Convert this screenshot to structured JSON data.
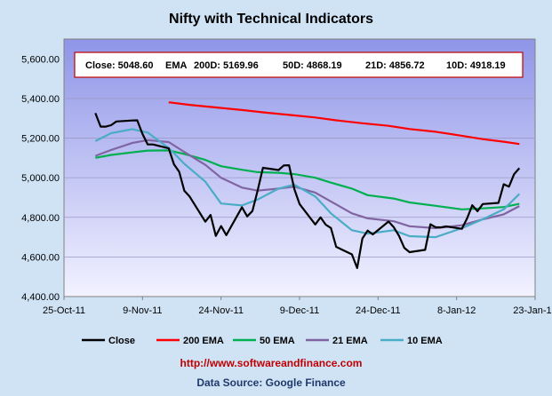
{
  "colors": {
    "background": "#cfe3f5",
    "plot_top": "#8f95e8",
    "plot_bottom": "#f2f2ff",
    "info_border": "#c00000",
    "url": "#c00000",
    "source": "#1f3a6b"
  },
  "info_box": {
    "close": "Close: 5048.60",
    "ema": "EMA",
    "d200": "200D: 5169.96",
    "d50": "50D: 4868.19",
    "d21": "21D: 4856.72",
    "d10": "10D: 4918.19"
  },
  "footer": {
    "url": "http://www.softwareandfinance.com",
    "source": "Data Source: Google Finance"
  },
  "chart_data": {
    "type": "line",
    "title": "Nifty with Technical Indicators",
    "xlabel": "",
    "ylabel": "",
    "ylim": [
      4400,
      5700
    ],
    "xlim": [
      "2011-10-25",
      "2012-01-23"
    ],
    "grid": true,
    "legend_position": "bottom",
    "y_ticks": [
      "4,400.00",
      "4,600.00",
      "4,800.00",
      "5,000.00",
      "5,200.00",
      "5,400.00",
      "5,600.00"
    ],
    "x_ticks": [
      "25-Oct-11",
      "9-Nov-11",
      "24-Nov-11",
      "9-Dec-11",
      "24-Dec-11",
      "8-Jan-12",
      "23-Jan-12"
    ],
    "series": [
      {
        "name": "Close",
        "color": "#000000",
        "points": [
          [
            "2011-10-31",
            5326
          ],
          [
            "2011-11-01",
            5258
          ],
          [
            "2011-11-02",
            5258
          ],
          [
            "2011-11-03",
            5265
          ],
          [
            "2011-11-04",
            5284
          ],
          [
            "2011-11-07",
            5289
          ],
          [
            "2011-11-08",
            5290
          ],
          [
            "2011-11-09",
            5221
          ],
          [
            "2011-11-10",
            5168
          ],
          [
            "2011-11-11",
            5168
          ],
          [
            "2011-11-14",
            5148
          ],
          [
            "2011-11-15",
            5068
          ],
          [
            "2011-11-16",
            5030
          ],
          [
            "2011-11-17",
            4934
          ],
          [
            "2011-11-18",
            4905
          ],
          [
            "2011-11-21",
            4778
          ],
          [
            "2011-11-22",
            4812
          ],
          [
            "2011-11-23",
            4706
          ],
          [
            "2011-11-24",
            4756
          ],
          [
            "2011-11-25",
            4710
          ],
          [
            "2011-11-28",
            4851
          ],
          [
            "2011-11-29",
            4805
          ],
          [
            "2011-11-30",
            4832
          ],
          [
            "2011-12-01",
            4936
          ],
          [
            "2011-12-02",
            5050
          ],
          [
            "2011-12-05",
            5039
          ],
          [
            "2011-12-06",
            5062
          ],
          [
            "2011-12-07",
            5063
          ],
          [
            "2011-12-08",
            4943
          ],
          [
            "2011-12-09",
            4867
          ],
          [
            "2011-12-12",
            4764
          ],
          [
            "2011-12-13",
            4800
          ],
          [
            "2011-12-14",
            4763
          ],
          [
            "2011-12-15",
            4746
          ],
          [
            "2011-12-16",
            4651
          ],
          [
            "2011-12-19",
            4613
          ],
          [
            "2011-12-20",
            4544
          ],
          [
            "2011-12-21",
            4693
          ],
          [
            "2011-12-22",
            4733
          ],
          [
            "2011-12-23",
            4714
          ],
          [
            "2011-12-26",
            4779
          ],
          [
            "2011-12-27",
            4750
          ],
          [
            "2011-12-28",
            4706
          ],
          [
            "2011-12-29",
            4646
          ],
          [
            "2011-12-30",
            4624
          ],
          [
            "2012-01-02",
            4636
          ],
          [
            "2012-01-03",
            4765
          ],
          [
            "2012-01-04",
            4750
          ],
          [
            "2012-01-05",
            4749
          ],
          [
            "2012-01-06",
            4754
          ],
          [
            "2012-01-09",
            4742
          ],
          [
            "2012-01-10",
            4794
          ],
          [
            "2012-01-11",
            4861
          ],
          [
            "2012-01-12",
            4831
          ],
          [
            "2012-01-13",
            4867
          ],
          [
            "2012-01-16",
            4873
          ],
          [
            "2012-01-17",
            4967
          ],
          [
            "2012-01-18",
            4955
          ],
          [
            "2012-01-19",
            5018
          ],
          [
            "2012-01-20",
            5048
          ]
        ]
      },
      {
        "name": "200 EMA",
        "color": "#ff0000",
        "points": [
          [
            "2011-11-14",
            5381
          ],
          [
            "2011-11-18",
            5368
          ],
          [
            "2011-11-23",
            5355
          ],
          [
            "2011-11-28",
            5342
          ],
          [
            "2011-12-02",
            5330
          ],
          [
            "2011-12-07",
            5317
          ],
          [
            "2011-12-12",
            5304
          ],
          [
            "2011-12-16",
            5290
          ],
          [
            "2011-12-21",
            5275
          ],
          [
            "2011-12-26",
            5262
          ],
          [
            "2011-12-30",
            5246
          ],
          [
            "2012-01-04",
            5232
          ],
          [
            "2012-01-09",
            5212
          ],
          [
            "2012-01-13",
            5195
          ],
          [
            "2012-01-17",
            5182
          ],
          [
            "2012-01-20",
            5170
          ]
        ]
      },
      {
        "name": "50 EMA",
        "color": "#00b050",
        "points": [
          [
            "2011-10-31",
            5100
          ],
          [
            "2011-11-03",
            5115
          ],
          [
            "2011-11-07",
            5128
          ],
          [
            "2011-11-10",
            5137
          ],
          [
            "2011-11-14",
            5138
          ],
          [
            "2011-11-17",
            5120
          ],
          [
            "2011-11-21",
            5090
          ],
          [
            "2011-11-24",
            5058
          ],
          [
            "2011-11-28",
            5040
          ],
          [
            "2011-12-01",
            5028
          ],
          [
            "2011-12-05",
            5025
          ],
          [
            "2011-12-08",
            5018
          ],
          [
            "2011-12-12",
            5000
          ],
          [
            "2011-12-15",
            4975
          ],
          [
            "2011-12-19",
            4945
          ],
          [
            "2011-12-22",
            4912
          ],
          [
            "2011-12-27",
            4895
          ],
          [
            "2011-12-30",
            4875
          ],
          [
            "2012-01-04",
            4858
          ],
          [
            "2012-01-09",
            4840
          ],
          [
            "2012-01-13",
            4845
          ],
          [
            "2012-01-17",
            4852
          ],
          [
            "2012-01-20",
            4868
          ]
        ]
      },
      {
        "name": "21 EMA",
        "color": "#8064a2",
        "points": [
          [
            "2011-10-31",
            5110
          ],
          [
            "2011-11-03",
            5140
          ],
          [
            "2011-11-07",
            5175
          ],
          [
            "2011-11-10",
            5190
          ],
          [
            "2011-11-14",
            5180
          ],
          [
            "2011-11-17",
            5130
          ],
          [
            "2011-11-21",
            5065
          ],
          [
            "2011-11-24",
            5000
          ],
          [
            "2011-11-28",
            4950
          ],
          [
            "2011-12-01",
            4935
          ],
          [
            "2011-12-05",
            4945
          ],
          [
            "2011-12-08",
            4955
          ],
          [
            "2011-12-12",
            4925
          ],
          [
            "2011-12-15",
            4880
          ],
          [
            "2011-12-19",
            4820
          ],
          [
            "2011-12-22",
            4795
          ],
          [
            "2011-12-27",
            4780
          ],
          [
            "2011-12-30",
            4755
          ],
          [
            "2012-01-04",
            4745
          ],
          [
            "2012-01-09",
            4760
          ],
          [
            "2012-01-13",
            4790
          ],
          [
            "2012-01-17",
            4815
          ],
          [
            "2012-01-20",
            4857
          ]
        ]
      },
      {
        "name": "10 EMA",
        "color": "#4bacc6",
        "points": [
          [
            "2011-10-31",
            5185
          ],
          [
            "2011-11-03",
            5225
          ],
          [
            "2011-11-07",
            5245
          ],
          [
            "2011-11-10",
            5228
          ],
          [
            "2011-11-14",
            5150
          ],
          [
            "2011-11-17",
            5070
          ],
          [
            "2011-11-21",
            4980
          ],
          [
            "2011-11-24",
            4870
          ],
          [
            "2011-11-28",
            4860
          ],
          [
            "2011-12-01",
            4890
          ],
          [
            "2011-12-05",
            4945
          ],
          [
            "2011-12-08",
            4965
          ],
          [
            "2011-12-12",
            4905
          ],
          [
            "2011-12-15",
            4820
          ],
          [
            "2011-12-19",
            4735
          ],
          [
            "2011-12-22",
            4718
          ],
          [
            "2011-12-27",
            4735
          ],
          [
            "2011-12-30",
            4705
          ],
          [
            "2012-01-04",
            4700
          ],
          [
            "2012-01-09",
            4745
          ],
          [
            "2012-01-13",
            4790
          ],
          [
            "2012-01-17",
            4840
          ],
          [
            "2012-01-20",
            4918
          ]
        ]
      }
    ]
  }
}
